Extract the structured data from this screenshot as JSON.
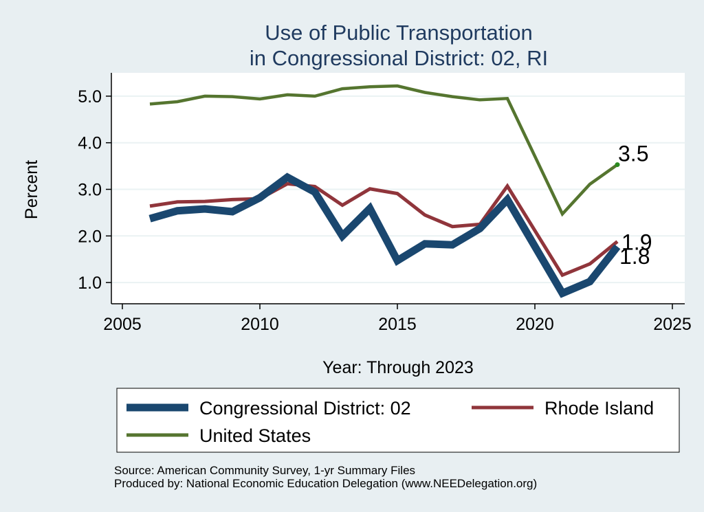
{
  "chart_data": {
    "type": "line",
    "title": [
      "Use of Public Transportation",
      "in Congressional District: 02, RI"
    ],
    "xlabel": "Year: Through 2023",
    "ylabel": "Percent",
    "xlim": [
      2005,
      2025
    ],
    "ylim": [
      0.5,
      5.5
    ],
    "xticks": [
      2005,
      2010,
      2015,
      2020,
      2025
    ],
    "yticks": [
      1.0,
      2.0,
      3.0,
      4.0,
      5.0
    ],
    "ytick_labels": [
      "1.0",
      "2.0",
      "3.0",
      "4.0",
      "5.0"
    ],
    "x": [
      2006,
      2007,
      2008,
      2009,
      2010,
      2011,
      2012,
      2013,
      2014,
      2015,
      2016,
      2017,
      2018,
      2019,
      2021,
      2022,
      2023
    ],
    "series": [
      {
        "name": "Congressional District: 02",
        "color": "#1a476f",
        "values": [
          2.37,
          2.54,
          2.58,
          2.52,
          2.82,
          3.26,
          2.94,
          2.0,
          2.59,
          1.47,
          1.83,
          1.81,
          2.16,
          2.78,
          0.77,
          1.02,
          1.77
        ],
        "end_label": "1.8"
      },
      {
        "name": "Rhode Island",
        "color": "#90353b",
        "values": [
          2.64,
          2.73,
          2.74,
          2.78,
          2.8,
          3.12,
          3.06,
          2.66,
          3.01,
          2.91,
          2.45,
          2.2,
          2.25,
          3.07,
          1.16,
          1.4,
          1.88
        ],
        "end_label": "1.9"
      },
      {
        "name": "United States",
        "color": "#55752f",
        "values": [
          4.83,
          4.88,
          5.0,
          4.99,
          4.94,
          5.03,
          5.0,
          5.16,
          5.2,
          5.22,
          5.08,
          4.99,
          4.92,
          4.95,
          2.47,
          3.11,
          3.53
        ],
        "end_label": "3.5"
      }
    ],
    "legend": {
      "placement": "bottom",
      "entries": [
        "Congressional District: 02",
        "Rhode Island",
        "United States"
      ]
    },
    "notes": [
      "Source: American Community Survey, 1-yr Summary Files",
      "Produced by: National Economic Education Delegation (www.NEEDelegation.org)"
    ]
  }
}
